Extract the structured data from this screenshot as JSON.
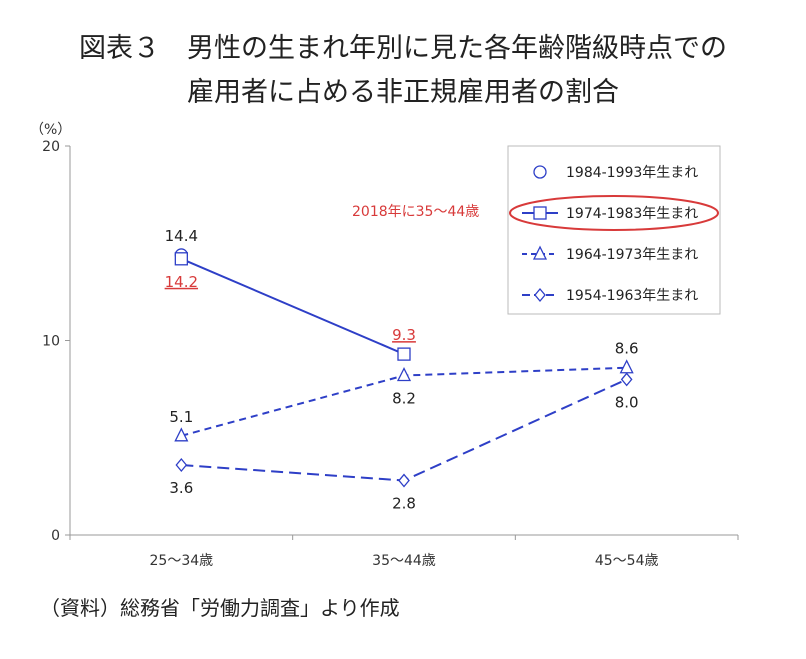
{
  "title": {
    "line1": "図表３　男性の生まれ年別に見た各年齢階級時点での",
    "line2": "雇用者に占める非正規雇用者の割合"
  },
  "source": "（資料）総務省「労働力調査」より作成",
  "chart_data": {
    "type": "line",
    "ylabel": "（%）",
    "ylim": [
      0,
      20
    ],
    "yticks": [
      0,
      10,
      20
    ],
    "categories": [
      "25～34歳",
      "35～44歳",
      "45～54歳"
    ],
    "legend_position": "top-right",
    "annotation": "2018年に35～44歳",
    "series": [
      {
        "name": "1984-1993年生まれ",
        "values": [
          14.4,
          null,
          null
        ],
        "color": "#2e3fc7",
        "style": "markers",
        "marker": "circle",
        "highlight": false
      },
      {
        "name": "1974-1983年生まれ",
        "values": [
          14.2,
          9.3,
          null
        ],
        "color": "#2e3fc7",
        "style": "solid",
        "marker": "square",
        "highlight": true
      },
      {
        "name": "1964-1973年生まれ",
        "values": [
          5.1,
          8.2,
          8.6
        ],
        "color": "#2e3fc7",
        "style": "dashed",
        "marker": "triangle",
        "highlight": false
      },
      {
        "name": "1954-1963年生まれ",
        "values": [
          3.6,
          2.8,
          8.0
        ],
        "color": "#2e3fc7",
        "style": "longdash",
        "marker": "diamond",
        "highlight": false
      }
    ],
    "data_labels": [
      {
        "series": 0,
        "index": 0,
        "text": "14.4",
        "pos": "above",
        "red": false
      },
      {
        "series": 1,
        "index": 0,
        "text": "14.2",
        "pos": "below",
        "red": true
      },
      {
        "series": 1,
        "index": 1,
        "text": "9.3",
        "pos": "above",
        "red": true
      },
      {
        "series": 2,
        "index": 0,
        "text": "5.1",
        "pos": "above",
        "red": false
      },
      {
        "series": 2,
        "index": 1,
        "text": "8.2",
        "pos": "below",
        "red": false
      },
      {
        "series": 2,
        "index": 2,
        "text": "8.6",
        "pos": "above",
        "red": false
      },
      {
        "series": 3,
        "index": 0,
        "text": "3.6",
        "pos": "below",
        "red": false
      },
      {
        "series": 3,
        "index": 1,
        "text": "2.8",
        "pos": "below",
        "red": false
      },
      {
        "series": 3,
        "index": 2,
        "text": "8.0",
        "pos": "below",
        "red": false
      }
    ],
    "highlight_color": "#d83a3a"
  }
}
